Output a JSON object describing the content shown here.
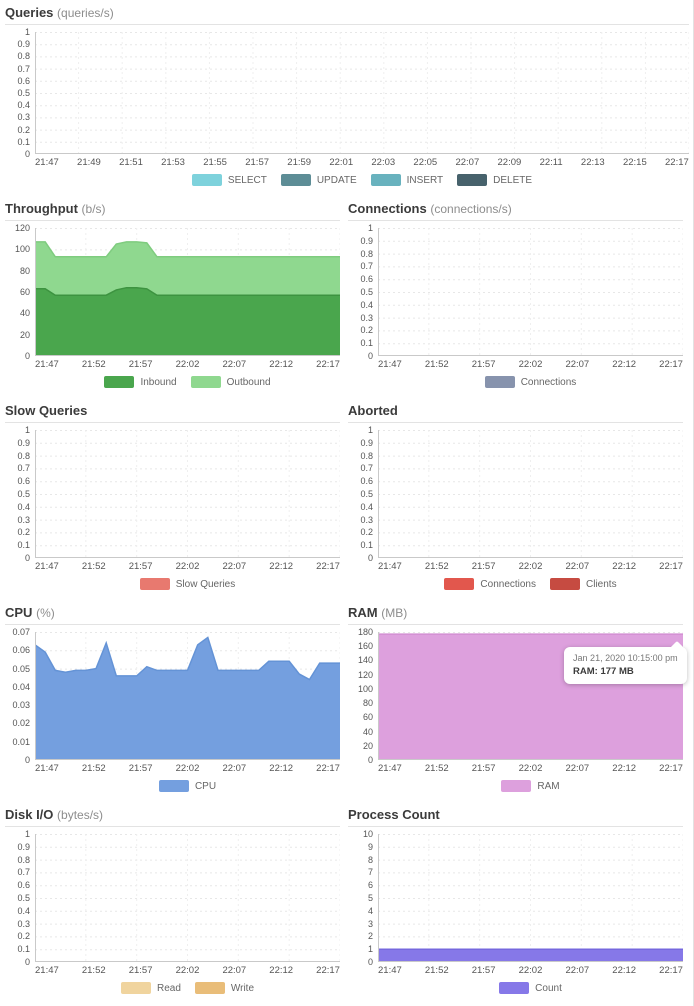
{
  "tooltip": {
    "line1": "Jan 21, 2020 10:15:00 pm",
    "line2": "RAM: 177 MB"
  },
  "colors": {
    "grid": "#e7e7e7",
    "vgrid": "#efefef",
    "axis": "#c9c9c9",
    "select": "#7ed2dc",
    "update": "#5d8d96",
    "insert": "#68b2be",
    "delete": "#47626c",
    "inbound": "#4aa64d",
    "outbound": "#8fd88f",
    "connections": "#8793ad",
    "slow_queries": "#e8796f",
    "aborted_connections": "#e2574d",
    "aborted_clients": "#c64b41",
    "cpu": "#749fdf",
    "ram": "#dda0dd",
    "read": "#f0d49e",
    "write": "#e9bd79",
    "count": "#8678e8"
  },
  "chart_data": [
    {
      "type": "area",
      "title": "Queries",
      "unit": "(queries/s)",
      "y_max": 1,
      "y_ticks": [
        "1",
        "0.9",
        "0.8",
        "0.7",
        "0.6",
        "0.5",
        "0.4",
        "0.3",
        "0.2",
        "0.1",
        "0"
      ],
      "x_labels": [
        "21:47",
        "21:49",
        "21:51",
        "21:53",
        "21:55",
        "21:57",
        "21:59",
        "22:01",
        "22:03",
        "22:05",
        "22:07",
        "22:09",
        "22:11",
        "22:13",
        "22:15",
        "22:17"
      ],
      "stacked": false,
      "series": [
        {
          "name": "SELECT",
          "color": "#7ed2dc",
          "values": []
        },
        {
          "name": "UPDATE",
          "color": "#5d8d96",
          "values": []
        },
        {
          "name": "INSERT",
          "color": "#68b2be",
          "values": []
        },
        {
          "name": "DELETE",
          "color": "#47626c",
          "values": []
        }
      ]
    },
    {
      "type": "area",
      "title": "Throughput",
      "unit": "(b/s)",
      "y_max": 120,
      "y_ticks": [
        "120",
        "100",
        "80",
        "60",
        "40",
        "20",
        "0"
      ],
      "x_labels": [
        "21:47",
        "21:52",
        "21:57",
        "22:02",
        "22:07",
        "22:12",
        "22:17"
      ],
      "stacked": true,
      "series": [
        {
          "name": "Inbound",
          "color": "#4aa64d",
          "stroke": "#3d9340",
          "values": [
            63,
            63,
            57,
            57,
            57,
            57,
            57,
            57,
            62,
            64,
            64,
            63,
            57,
            57,
            57,
            57,
            57,
            57,
            57,
            57,
            57,
            57,
            57,
            57,
            57,
            57,
            57,
            57,
            57,
            57,
            57
          ]
        },
        {
          "name": "Outbound",
          "color": "#8fd88f",
          "stroke": "#7fcc7f",
          "values": [
            44,
            44,
            36,
            36,
            36,
            36,
            36,
            36,
            43,
            43,
            43,
            43,
            36,
            36,
            36,
            36,
            36,
            36,
            36,
            36,
            36,
            36,
            36,
            36,
            36,
            36,
            36,
            36,
            36,
            36,
            36
          ]
        }
      ]
    },
    {
      "type": "area",
      "title": "Connections",
      "unit": "(connections/s)",
      "y_max": 1,
      "y_ticks": [
        "1",
        "0.9",
        "0.8",
        "0.7",
        "0.6",
        "0.5",
        "0.4",
        "0.3",
        "0.2",
        "0.1",
        "0"
      ],
      "x_labels": [
        "21:47",
        "21:52",
        "21:57",
        "22:02",
        "22:07",
        "22:12",
        "22:17"
      ],
      "stacked": false,
      "series": [
        {
          "name": "Connections",
          "color": "#8793ad",
          "values": []
        }
      ]
    },
    {
      "type": "area",
      "title": "Slow Queries",
      "unit": "",
      "y_max": 1,
      "y_ticks": [
        "1",
        "0.9",
        "0.8",
        "0.7",
        "0.6",
        "0.5",
        "0.4",
        "0.3",
        "0.2",
        "0.1",
        "0"
      ],
      "x_labels": [
        "21:47",
        "21:52",
        "21:57",
        "22:02",
        "22:07",
        "22:12",
        "22:17"
      ],
      "stacked": false,
      "series": [
        {
          "name": "Slow Queries",
          "color": "#e8796f",
          "values": []
        }
      ]
    },
    {
      "type": "area",
      "title": "Aborted",
      "unit": "",
      "y_max": 1,
      "y_ticks": [
        "1",
        "0.9",
        "0.8",
        "0.7",
        "0.6",
        "0.5",
        "0.4",
        "0.3",
        "0.2",
        "0.1",
        "0"
      ],
      "x_labels": [
        "21:47",
        "21:52",
        "21:57",
        "22:02",
        "22:07",
        "22:12",
        "22:17"
      ],
      "stacked": false,
      "series": [
        {
          "name": "Connections",
          "color": "#e2574d",
          "values": []
        },
        {
          "name": "Clients",
          "color": "#c64b41",
          "values": []
        }
      ]
    },
    {
      "type": "area",
      "title": "CPU",
      "unit": "(%)",
      "y_max": 0.07,
      "y_ticks": [
        "0.07",
        "0.06",
        "0.05",
        "0.04",
        "0.03",
        "0.02",
        "0.01",
        "0"
      ],
      "x_labels": [
        "21:47",
        "21:52",
        "21:57",
        "22:02",
        "22:07",
        "22:12",
        "22:17"
      ],
      "stacked": false,
      "series": [
        {
          "name": "CPU",
          "color": "#749fdf",
          "stroke": "#6493d6",
          "values": [
            0.063,
            0.059,
            0.049,
            0.048,
            0.049,
            0.049,
            0.05,
            0.064,
            0.046,
            0.046,
            0.046,
            0.051,
            0.049,
            0.049,
            0.049,
            0.049,
            0.063,
            0.067,
            0.049,
            0.049,
            0.049,
            0.049,
            0.049,
            0.054,
            0.054,
            0.054,
            0.047,
            0.044,
            0.053,
            0.053,
            0.053
          ]
        }
      ]
    },
    {
      "type": "area",
      "title": "RAM",
      "unit": "(MB)",
      "y_max": 180,
      "y_ticks": [
        "180",
        "160",
        "140",
        "120",
        "100",
        "80",
        "60",
        "40",
        "20",
        "0"
      ],
      "x_labels": [
        "21:47",
        "21:52",
        "21:57",
        "22:02",
        "22:07",
        "22:12",
        "22:17"
      ],
      "stacked": false,
      "series": [
        {
          "name": "RAM",
          "color": "#dda0dd",
          "stroke": "#d28fd2",
          "values": [
            177,
            177,
            177,
            177,
            177,
            177,
            177,
            177,
            177,
            177,
            177,
            177,
            177,
            177,
            177,
            177,
            177,
            177,
            177,
            177,
            177,
            177,
            177,
            177,
            177,
            177,
            177,
            177,
            177,
            177,
            177
          ]
        }
      ]
    },
    {
      "type": "area",
      "title": "Disk I/O",
      "unit": "(bytes/s)",
      "y_max": 1,
      "y_ticks": [
        "1",
        "0.9",
        "0.8",
        "0.7",
        "0.6",
        "0.5",
        "0.4",
        "0.3",
        "0.2",
        "0.1",
        "0"
      ],
      "x_labels": [
        "21:47",
        "21:52",
        "21:57",
        "22:02",
        "22:07",
        "22:12",
        "22:17"
      ],
      "stacked": false,
      "series": [
        {
          "name": "Read",
          "color": "#f0d49e",
          "values": []
        },
        {
          "name": "Write",
          "color": "#e9bd79",
          "values": []
        }
      ]
    },
    {
      "type": "area",
      "title": "Process Count",
      "unit": "",
      "y_max": 10,
      "y_ticks": [
        "10",
        "9",
        "8",
        "7",
        "6",
        "5",
        "4",
        "3",
        "2",
        "1",
        "0"
      ],
      "x_labels": [
        "21:47",
        "21:52",
        "21:57",
        "22:02",
        "22:07",
        "22:12",
        "22:17"
      ],
      "stacked": false,
      "series": [
        {
          "name": "Count",
          "color": "#8678e8",
          "stroke": "#7668de",
          "values": [
            1,
            1,
            1,
            1,
            1,
            1,
            1,
            1,
            1,
            1,
            1,
            1,
            1,
            1,
            1,
            1,
            1,
            1,
            1,
            1,
            1,
            1,
            1,
            1,
            1,
            1,
            1,
            1,
            1,
            1,
            1
          ]
        }
      ]
    }
  ]
}
